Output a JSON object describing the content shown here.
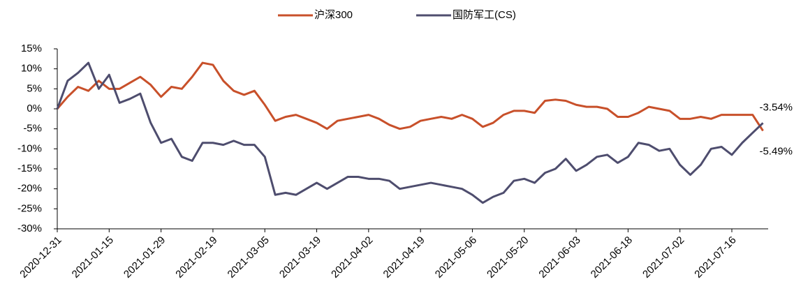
{
  "chart_data": {
    "type": "line",
    "categories": [
      "2020-12-31",
      null,
      null,
      null,
      null,
      "2021-01-15",
      null,
      null,
      null,
      null,
      "2021-01-29",
      null,
      null,
      null,
      null,
      "2021-02-19",
      null,
      null,
      null,
      null,
      "2021-03-05",
      null,
      null,
      null,
      null,
      "2021-03-19",
      null,
      null,
      null,
      null,
      "2021-04-02",
      null,
      null,
      null,
      null,
      "2021-04-19",
      null,
      null,
      null,
      null,
      "2021-05-06",
      null,
      null,
      null,
      null,
      "2021-05-20",
      null,
      null,
      null,
      null,
      "2021-06-03",
      null,
      null,
      null,
      null,
      "2021-06-18",
      null,
      null,
      null,
      null,
      "2021-07-02",
      null,
      null,
      null,
      null,
      "2021-07-16",
      null,
      null,
      null
    ],
    "series": [
      {
        "name": "沪深300",
        "color": "#c8502a",
        "values": [
          0,
          3,
          5.5,
          4.5,
          7,
          5,
          5,
          6.5,
          8,
          6,
          3,
          5.5,
          5,
          8,
          11.5,
          11,
          7,
          4.5,
          3.5,
          4.5,
          1,
          -3,
          -2,
          -1.5,
          -2.5,
          -3.5,
          -5,
          -3,
          -2.5,
          -2,
          -1.5,
          -2.5,
          -4,
          -5,
          -4.5,
          -3,
          -2.5,
          -2,
          -2.5,
          -1.5,
          -2.5,
          -4.5,
          -3.5,
          -1.5,
          -0.5,
          -0.5,
          -1,
          2,
          2.3,
          2,
          1,
          0.5,
          0.5,
          0,
          -2,
          -2,
          -1,
          0.5,
          0,
          -0.5,
          -2.5,
          -2.5,
          -2,
          -2.5,
          -1.5,
          -1.5,
          -1.5,
          -1.5,
          -5.49
        ],
        "value_labels": [
          null,
          null,
          null,
          null,
          null,
          null,
          null,
          null,
          null,
          null,
          null,
          null,
          null,
          null,
          null,
          null,
          null,
          null,
          null,
          null,
          null,
          null,
          null,
          null,
          null,
          null,
          null,
          null,
          null,
          null,
          null,
          null,
          null,
          null,
          null,
          null,
          null,
          null,
          null,
          null,
          null,
          null,
          null,
          null,
          null,
          null,
          null,
          null,
          null,
          null,
          null,
          null,
          null,
          null,
          null,
          null,
          null,
          null,
          null,
          null,
          null,
          null,
          null,
          null,
          null,
          null,
          null,
          null,
          "-5.49%"
        ]
      },
      {
        "name": "国防军工(CS)",
        "color": "#4e4d6e",
        "values": [
          0,
          7,
          9,
          11.5,
          5,
          8.5,
          1.5,
          2.5,
          3.8,
          -3.5,
          -8.5,
          -7.5,
          -12,
          -13,
          -8.5,
          -8.5,
          -9,
          -8,
          -9,
          -9,
          -12,
          -21.5,
          -21,
          -21.5,
          -20,
          -18.5,
          -20,
          -18.5,
          -17,
          -17,
          -17.5,
          -17.5,
          -18,
          -20,
          -19.5,
          -19,
          -18.5,
          -19,
          -19.5,
          -20,
          -21.5,
          -23.5,
          -22,
          -21,
          -18,
          -17.5,
          -18.5,
          -16,
          -15,
          -12.5,
          -15.5,
          -14,
          -12,
          -11.5,
          -13.5,
          -12,
          -8.5,
          -9,
          -10.5,
          -10,
          -14,
          -16.5,
          -14,
          -10,
          -9.5,
          -11.5,
          -8.5,
          -6,
          -3.54
        ],
        "value_labels": [
          null,
          null,
          null,
          null,
          null,
          null,
          null,
          null,
          null,
          null,
          null,
          null,
          null,
          null,
          null,
          null,
          null,
          null,
          null,
          null,
          null,
          null,
          null,
          null,
          null,
          null,
          null,
          null,
          null,
          null,
          null,
          null,
          null,
          null,
          null,
          null,
          null,
          null,
          null,
          null,
          null,
          null,
          null,
          null,
          null,
          null,
          null,
          null,
          null,
          null,
          null,
          null,
          null,
          null,
          null,
          null,
          null,
          null,
          null,
          null,
          null,
          null,
          null,
          null,
          null,
          null,
          null,
          null,
          "-3.54%"
        ]
      }
    ],
    "ylim": [
      -30,
      15
    ],
    "yticks": [
      {
        "value": -30,
        "label": "-30%"
      },
      {
        "value": -25,
        "label": "-25%"
      },
      {
        "value": -20,
        "label": "-20%"
      },
      {
        "value": -15,
        "label": "-15%"
      },
      {
        "value": -10,
        "label": "-10%"
      },
      {
        "value": -5,
        "label": "-5%"
      },
      {
        "value": 0,
        "label": "0%"
      },
      {
        "value": 5,
        "label": "5%"
      },
      {
        "value": 10,
        "label": "10%"
      },
      {
        "value": 15,
        "label": "15%"
      }
    ],
    "legend": "top",
    "grid": false
  }
}
